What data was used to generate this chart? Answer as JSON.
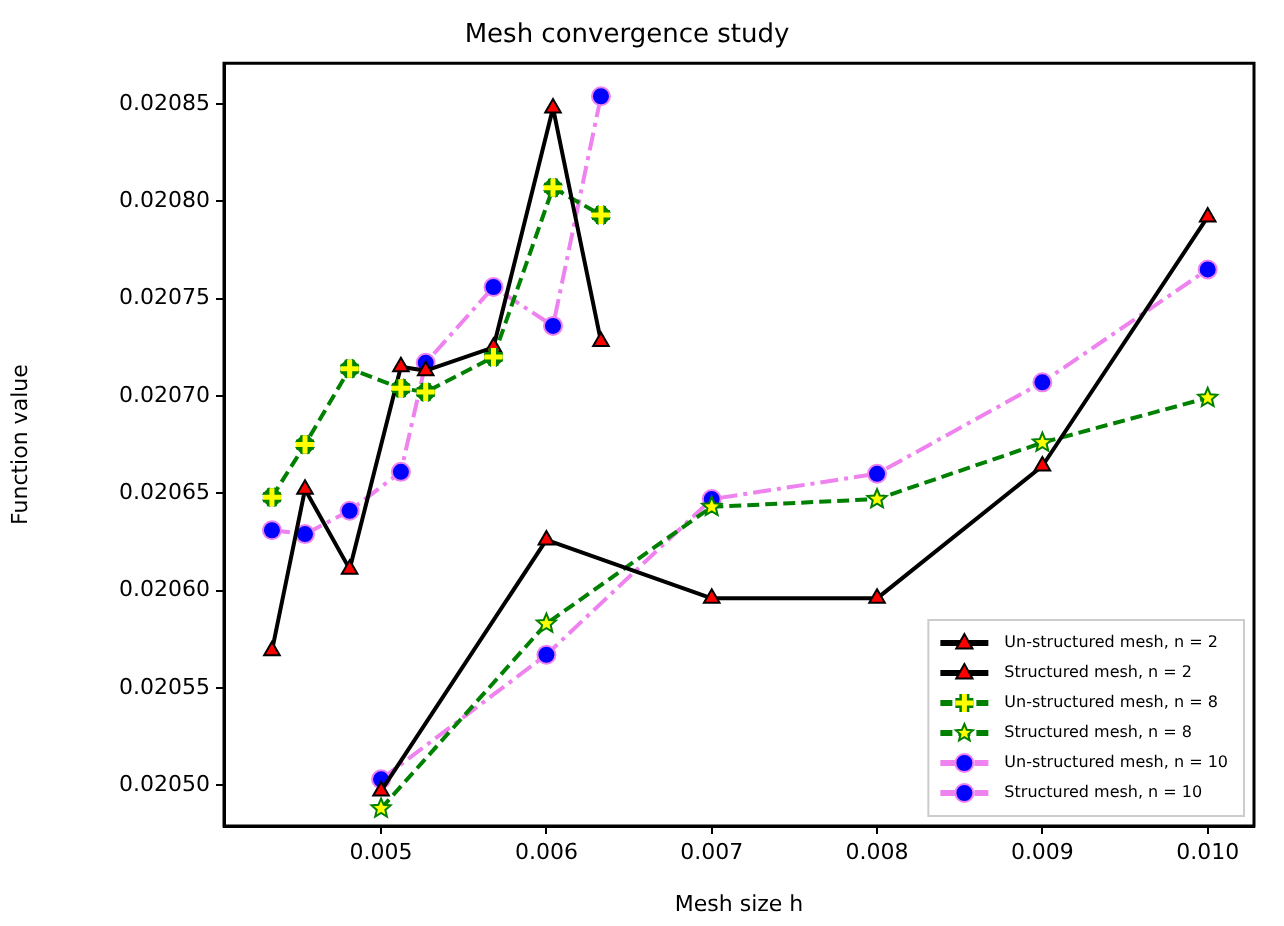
{
  "chart_data": {
    "type": "line",
    "title": "Mesh convergence study",
    "xlabel": "Mesh size h",
    "ylabel": "Function value",
    "xlim": [
      0.00405,
      0.01028
    ],
    "ylim": [
      0.020479,
      0.020871
    ],
    "xticks": [
      0.005,
      0.006,
      0.007,
      0.008,
      0.009,
      {
        "value": 0.01,
        "label": "0.010"
      }
    ],
    "yticks": [
      {
        "value": 0.0205,
        "label": "0.02050"
      },
      0.02055,
      {
        "value": 0.0206,
        "label": "0.02060"
      },
      0.02065,
      {
        "value": 0.0207,
        "label": "0.02070"
      },
      0.02075,
      {
        "value": 0.0208,
        "label": "0.02080"
      },
      0.02085
    ],
    "grid": false,
    "legend": "bottom right",
    "series": [
      {
        "name": "Un-structured mesh, n = 2",
        "color": "#000000",
        "marker": "triangle",
        "line_style": "solid",
        "colors": [
          "#ff0000",
          "#ff0000",
          "#ff0000",
          "#ff0000",
          "#ff0000",
          "#ff0000",
          "#ff0000",
          "#ff0000"
        ],
        "x": [
          0.00434,
          0.00454,
          0.00481,
          0.00512,
          0.00527,
          0.00568,
          0.00604,
          0.00633
        ],
        "values": [
          0.020569,
          0.020652,
          0.020611,
          0.020715,
          0.020713,
          0.020725,
          0.020848,
          0.020728
        ]
      },
      {
        "name": "Structured mesh, n = 2",
        "color": "#000000",
        "marker": "triangle",
        "line_style": "solid",
        "colors": [
          "#ff0000",
          "#ff0000",
          "#ff0000",
          "#ff0000",
          "#ff0000",
          "#ff0000"
        ],
        "x": [
          0.005,
          0.006,
          0.007,
          0.008,
          0.009,
          0.01
        ],
        "values": [
          0.020497,
          0.020626,
          0.020596,
          0.020596,
          0.020664,
          0.020792
        ]
      },
      {
        "name": "Un-structured mesh, n = 8",
        "color": "#008000",
        "marker": "cross",
        "line_style": "dashed",
        "colors": [
          "#ffff00",
          "#ffff00",
          "#ffff00",
          "#ffff00",
          "#ffff00",
          "#ffff00",
          "#ffff00",
          "#ffff00"
        ],
        "x": [
          0.00434,
          0.00454,
          0.00481,
          0.00512,
          0.00527,
          0.00568,
          0.00604,
          0.00633
        ],
        "values": [
          0.020648,
          0.020675,
          0.020714,
          0.020704,
          0.020702,
          0.02072,
          0.020807,
          0.020793
        ]
      },
      {
        "name": "Structured mesh, n = 8",
        "color": "#008000",
        "marker": "star",
        "line_style": "dashed",
        "colors": [
          "#ffff00",
          "#ffff00",
          "#ffff00",
          "#ffff00",
          "#ffff00",
          "#ffff00"
        ],
        "x": [
          0.005,
          0.006,
          0.007,
          0.008,
          0.009,
          0.01
        ],
        "values": [
          0.020488,
          0.020583,
          0.020643,
          0.020647,
          0.020676,
          0.020699
        ]
      },
      {
        "name": "Un-structured mesh, n = 10",
        "color": "#ee82ee",
        "marker": "circle",
        "line_style": "dashdot",
        "colors": [
          "#0000ff",
          "#0000ff",
          "#0000ff",
          "#0000ff",
          "#0000ff",
          "#0000ff",
          "#0000ff",
          "#0000ff"
        ],
        "x": [
          0.00434,
          0.00454,
          0.00481,
          0.00512,
          0.00527,
          0.00568,
          0.00604,
          0.00633
        ],
        "values": [
          0.020631,
          0.020629,
          0.020641,
          0.020661,
          0.020717,
          0.020756,
          0.020736,
          0.020854
        ]
      },
      {
        "name": "Structured mesh, n = 10",
        "color": "#ee82ee",
        "marker": "circle",
        "line_style": "dashdot",
        "colors": [
          "#0000ff",
          "#0000ff",
          "#0000ff",
          "#0000ff",
          "#0000ff",
          "#0000ff"
        ],
        "x": [
          0.005,
          0.006,
          0.007,
          0.008,
          0.009,
          0.01
        ],
        "values": [
          0.020503,
          0.020567,
          0.020647,
          0.02066,
          0.020707,
          0.020765
        ]
      }
    ]
  }
}
